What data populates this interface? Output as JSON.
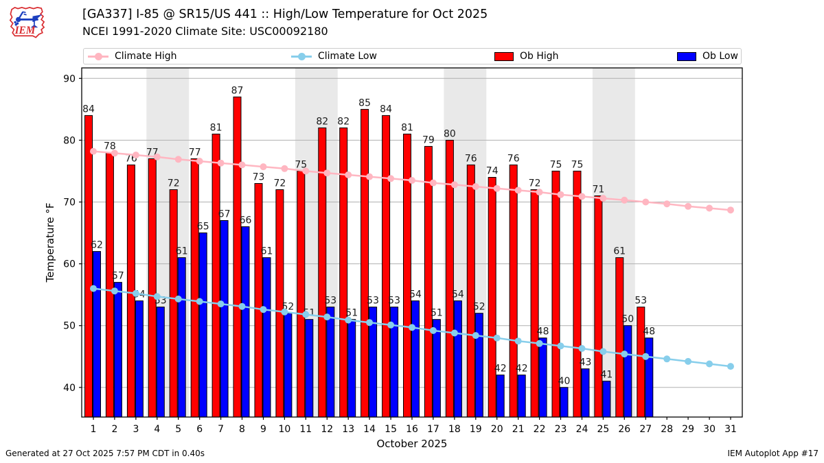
{
  "header": {
    "logo_text": "IEM",
    "title_line1": "[GA337] I-85 @ SR15/US 441 :: High/Low Temperature for Oct 2025",
    "title_line2": "NCEI 1991-2020 Climate Site: USC00092180"
  },
  "legend": {
    "position": "top, horizontal, 4 columns",
    "items": [
      {
        "label": "Climate High",
        "type": "line",
        "color": "#ffb6c1"
      },
      {
        "label": "Climate Low",
        "type": "line",
        "color": "#87ceeb"
      },
      {
        "label": "Ob High",
        "type": "patch",
        "color": "#ff0000"
      },
      {
        "label": "Ob Low",
        "type": "patch",
        "color": "#0000ff"
      }
    ]
  },
  "chart_data": {
    "type": "bar",
    "title": "[GA337] I-85 @ SR15/US 441 :: High/Low Temperature for Oct 2025",
    "subtitle": "NCEI 1991-2020 Climate Site: USC00092180",
    "xlabel": "October 2025",
    "ylabel": "Temperature °F",
    "x": [
      1,
      2,
      3,
      4,
      5,
      6,
      7,
      8,
      9,
      10,
      11,
      12,
      13,
      14,
      15,
      16,
      17,
      18,
      19,
      20,
      21,
      22,
      23,
      24,
      25,
      26,
      27,
      28,
      29,
      30,
      31
    ],
    "xlim": [
      0.45,
      31.55
    ],
    "ylim": [
      35.2,
      91.7
    ],
    "yticks": [
      40,
      50,
      60,
      70,
      80,
      90
    ],
    "grid": "horizontal",
    "grid_color": "#b0b0b0",
    "band_color": "#e9e9e9",
    "weekend_shading_days": [
      [
        4,
        5
      ],
      [
        11,
        12
      ],
      [
        18,
        19
      ],
      [
        25,
        26
      ]
    ],
    "bar_labels": true,
    "series": [
      {
        "name": "Ob High",
        "type": "bar",
        "color": "#ff0000",
        "values": [
          84,
          78,
          76,
          77,
          72,
          77,
          81,
          87,
          73,
          72,
          75,
          82,
          82,
          85,
          84,
          81,
          79,
          80,
          76,
          74,
          76,
          72,
          75,
          75,
          71,
          61,
          53
        ]
      },
      {
        "name": "Ob Low",
        "type": "bar",
        "color": "#0000ff",
        "values": [
          62,
          57,
          54,
          53,
          61,
          65,
          67,
          66,
          61,
          52,
          51,
          53,
          51,
          53,
          53,
          54,
          51,
          54,
          52,
          42,
          42,
          48,
          40,
          43,
          41,
          50,
          48
        ]
      },
      {
        "name": "Climate High",
        "type": "line",
        "color": "#ffb6c1",
        "values": [
          78.2,
          77.9,
          77.6,
          77.3,
          76.9,
          76.6,
          76.3,
          76.0,
          75.7,
          75.4,
          75.0,
          74.7,
          74.4,
          74.1,
          73.8,
          73.5,
          73.1,
          72.8,
          72.5,
          72.2,
          71.9,
          71.6,
          71.2,
          70.9,
          70.6,
          70.3,
          70.0,
          69.7,
          69.3,
          69.0,
          68.7
        ]
      },
      {
        "name": "Climate Low",
        "type": "line",
        "color": "#87ceeb",
        "values": [
          56.0,
          55.6,
          55.2,
          54.7,
          54.3,
          53.9,
          53.5,
          53.1,
          52.6,
          52.2,
          51.8,
          51.4,
          50.9,
          50.5,
          50.1,
          49.7,
          49.2,
          48.8,
          48.4,
          48.0,
          47.5,
          47.1,
          46.7,
          46.3,
          45.8,
          45.4,
          45.0,
          44.6,
          44.2,
          43.8,
          43.4
        ]
      }
    ]
  },
  "footer": {
    "left": "Generated at 27 Oct 2025 7:57 PM CDT in 0.40s",
    "right": "IEM Autoplot App #17"
  }
}
